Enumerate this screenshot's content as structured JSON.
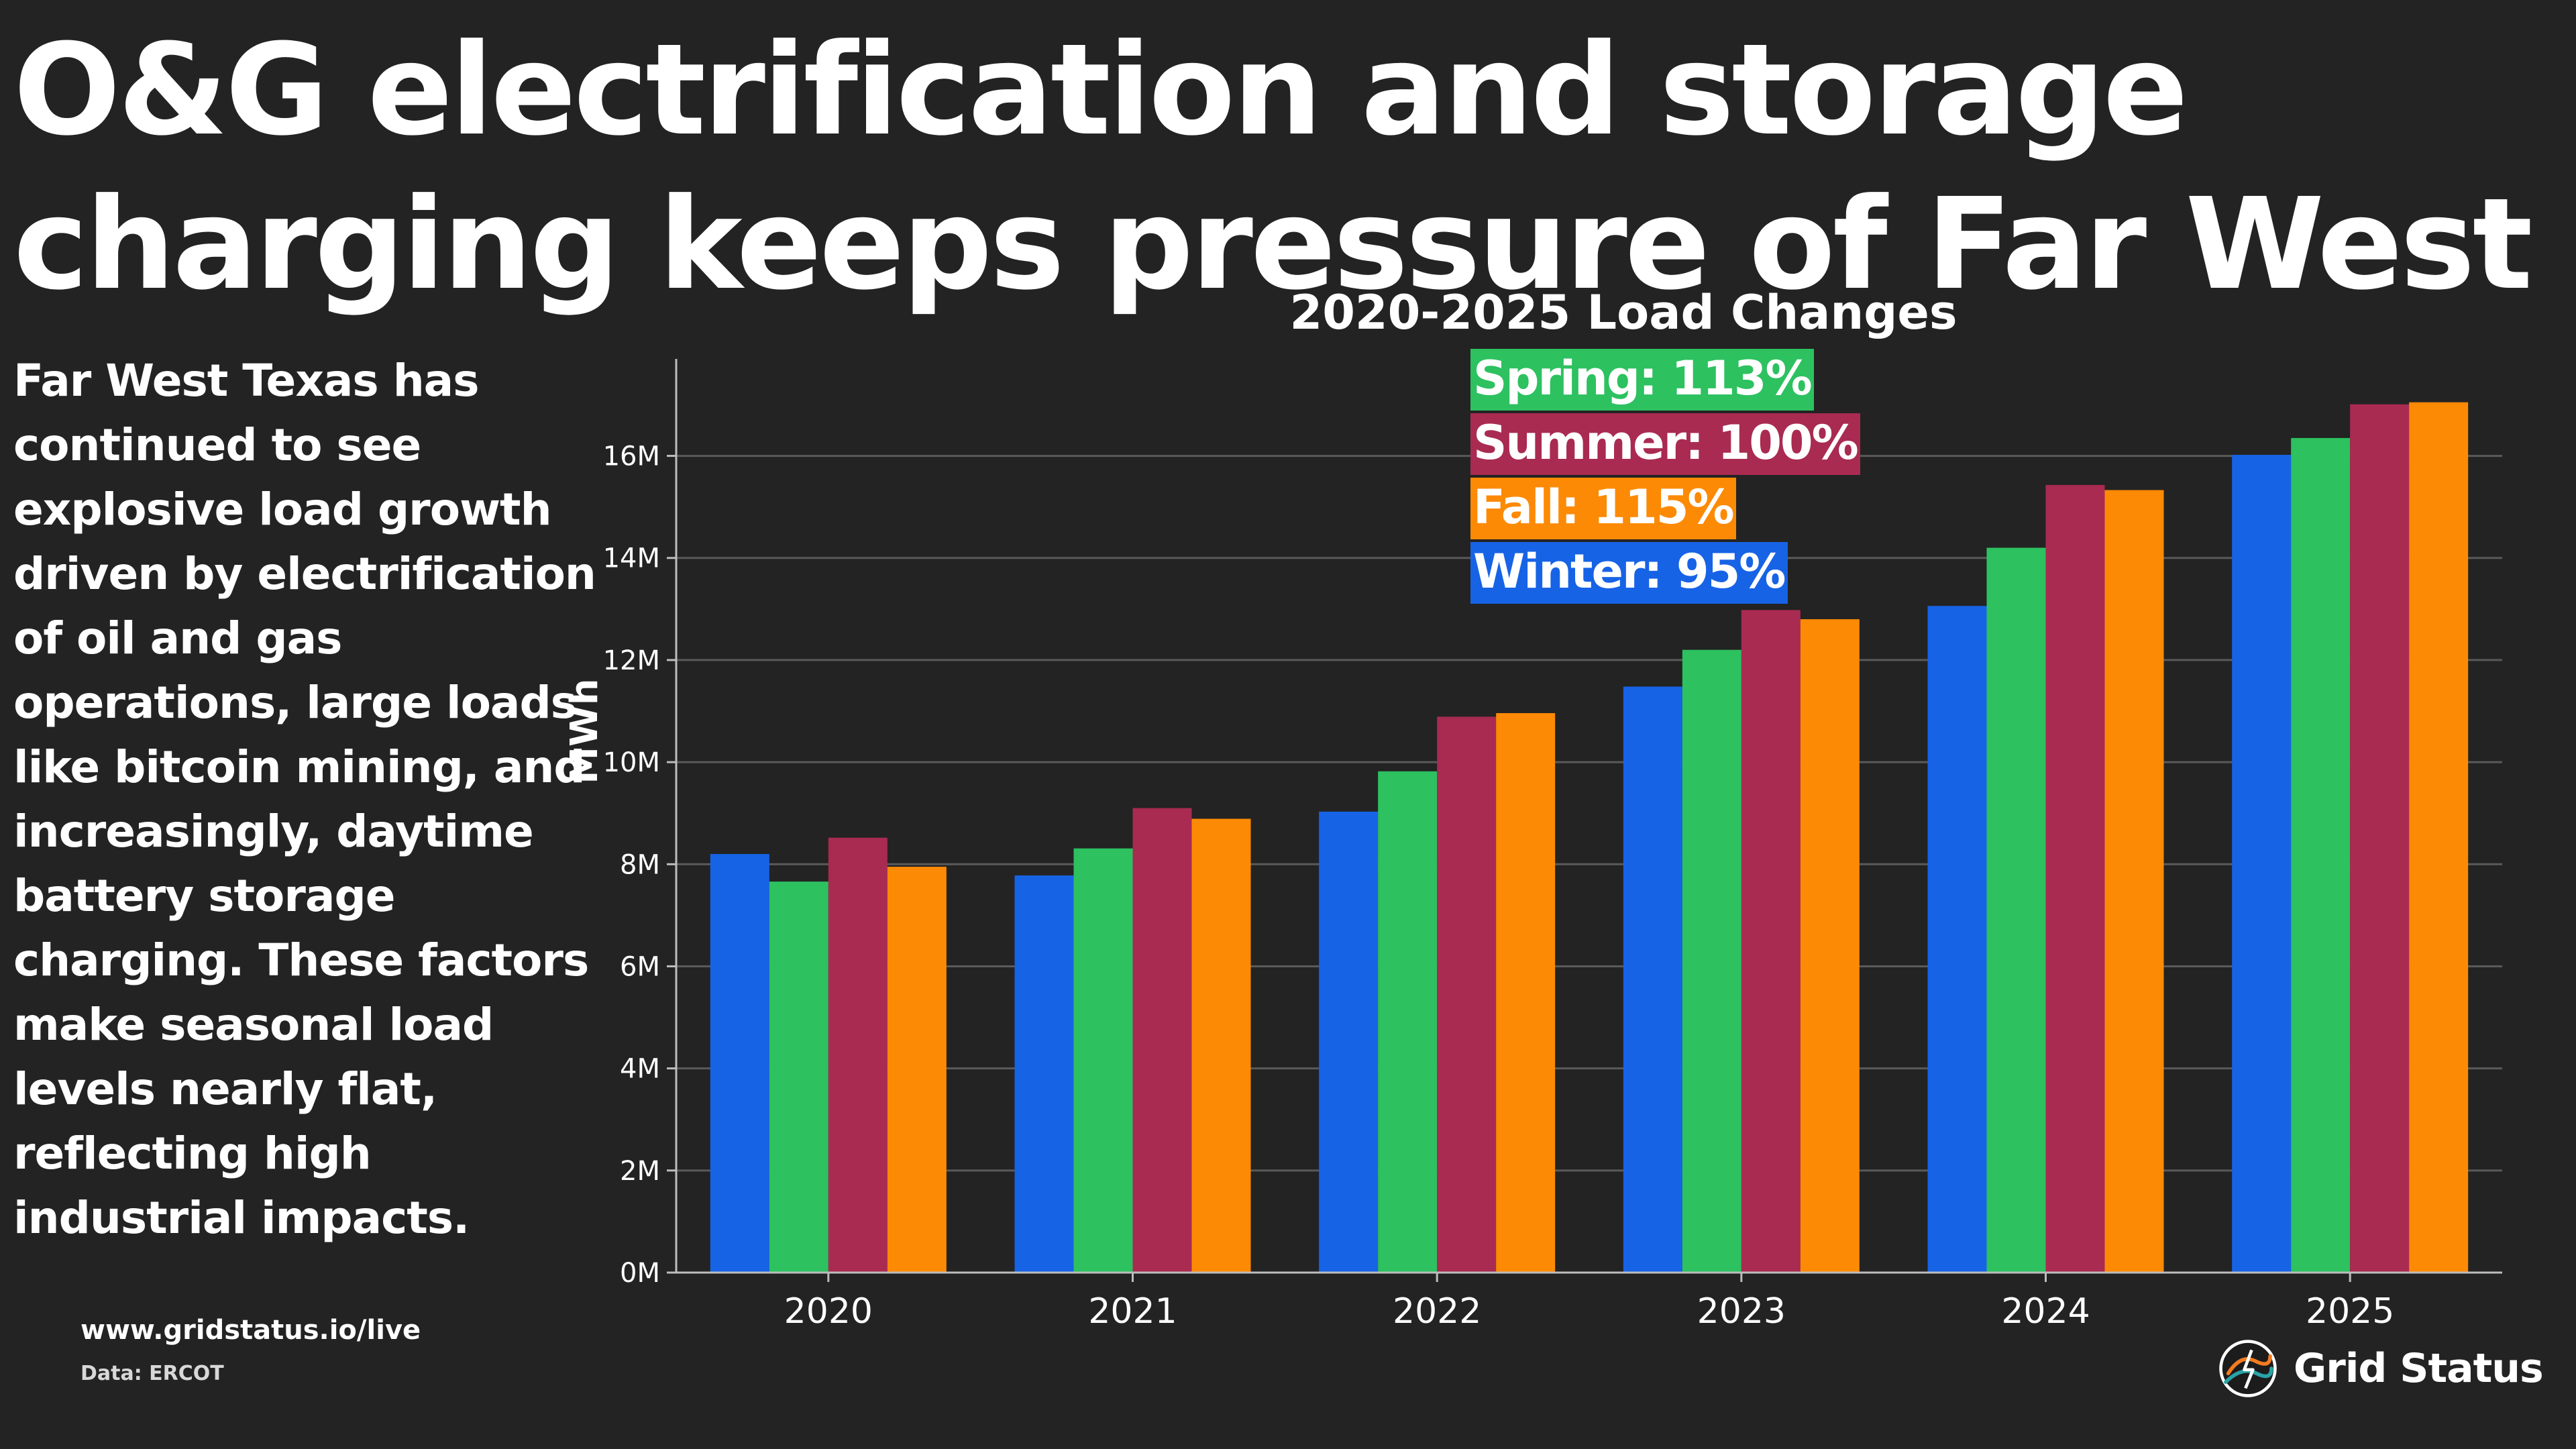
{
  "page": {
    "headline": "O&G electrification and storage charging keeps pressure of Far West",
    "summary": "Far West Texas has continued to see explosive load growth driven by electrification of oil and gas operations, large loads like bitcoin mining, and increasingly, daytime battery storage charging. These factors make seasonal load levels nearly flat, reflecting high industrial impacts.",
    "footer_url": "www.gridstatus.io/live",
    "footer_source": "Data: ERCOT",
    "brand_name": "Grid Status",
    "brand_icon": "grid-status-logo-icon"
  },
  "chart_data": {
    "type": "bar",
    "title": "2020-2025 Load Changes",
    "xlabel": "",
    "ylabel": "MWh",
    "ylim": [
      0,
      17900000
    ],
    "yticks": [
      0,
      2000000,
      4000000,
      6000000,
      8000000,
      10000000,
      12000000,
      14000000,
      16000000
    ],
    "ytick_labels": [
      "0M",
      "2M",
      "4M",
      "6M",
      "8M",
      "10M",
      "12M",
      "14M",
      "16M"
    ],
    "grid": true,
    "categories": [
      "2020",
      "2021",
      "2022",
      "2023",
      "2024",
      "2025"
    ],
    "series": [
      {
        "name": "Winter",
        "color": "#1763e6",
        "values": [
          8200000,
          7780000,
          9030000,
          11480000,
          13060000,
          16020000
        ]
      },
      {
        "name": "Spring",
        "color": "#2dc160",
        "values": [
          7660000,
          8310000,
          9820000,
          12200000,
          14200000,
          16350000
        ]
      },
      {
        "name": "Summer",
        "color": "#a92b51",
        "values": [
          8520000,
          9100000,
          10890000,
          12980000,
          15430000,
          17010000
        ]
      },
      {
        "name": "Fall",
        "color": "#fd8a05",
        "values": [
          7950000,
          8890000,
          10960000,
          12800000,
          15330000,
          17050000
        ]
      }
    ],
    "annotations": [
      {
        "series": "Spring",
        "text": "Spring: 113%",
        "color": "#2dc160"
      },
      {
        "series": "Summer",
        "text": "Summer: 100%",
        "color": "#a92b51"
      },
      {
        "series": "Fall",
        "text": "Fall: 115%",
        "color": "#fd8a05"
      },
      {
        "series": "Winter",
        "text": "Winter: 95%",
        "color": "#1763e6"
      }
    ],
    "colors": {
      "background": "#232323",
      "grid": "#5a5a5a",
      "axis": "#bdbdbd",
      "text": "#ffffff"
    }
  }
}
